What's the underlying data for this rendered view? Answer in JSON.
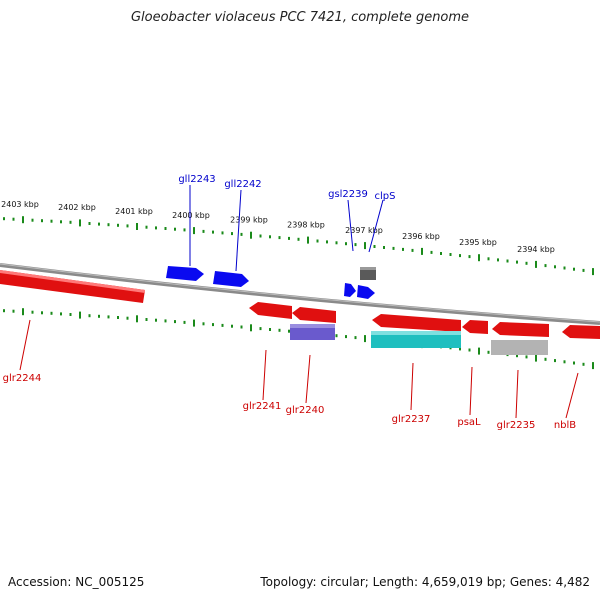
{
  "title": "Gloeobacter violaceus PCC 7421, complete genome",
  "footer": {
    "accession": "Accession: NC_005125",
    "summary": "Topology: circular; Length: 4,659,019 bp; Genes: 4,482"
  },
  "colors": {
    "forward_gene": "#0000ee",
    "reverse_gene": "#ee0000",
    "label_forward": "#0000cc",
    "label_reverse": "#cc0000",
    "ruler": "#1a8a1a",
    "backbone": "#888888",
    "rna_gene": "#606060",
    "cds_violet": "#6a5acd",
    "cds_cyan": "#20c0c0",
    "cds_grey": "#b0b0b0"
  },
  "ruler_labels": [
    "2403 kbp",
    "2402 kbp",
    "2401 kbp",
    "2400 kbp",
    "2399 kbp",
    "2398 kbp",
    "2397 kbp",
    "2396 kbp",
    "2395 kbp",
    "2394 kbp"
  ],
  "genes_top": [
    "gll2243",
    "gll2242",
    "gsl2239",
    "clpS"
  ],
  "genes_bottom": [
    "glr2244",
    "glr2241",
    "glr2240",
    "glr2237",
    "psaL",
    "glr2235",
    "nblB"
  ]
}
